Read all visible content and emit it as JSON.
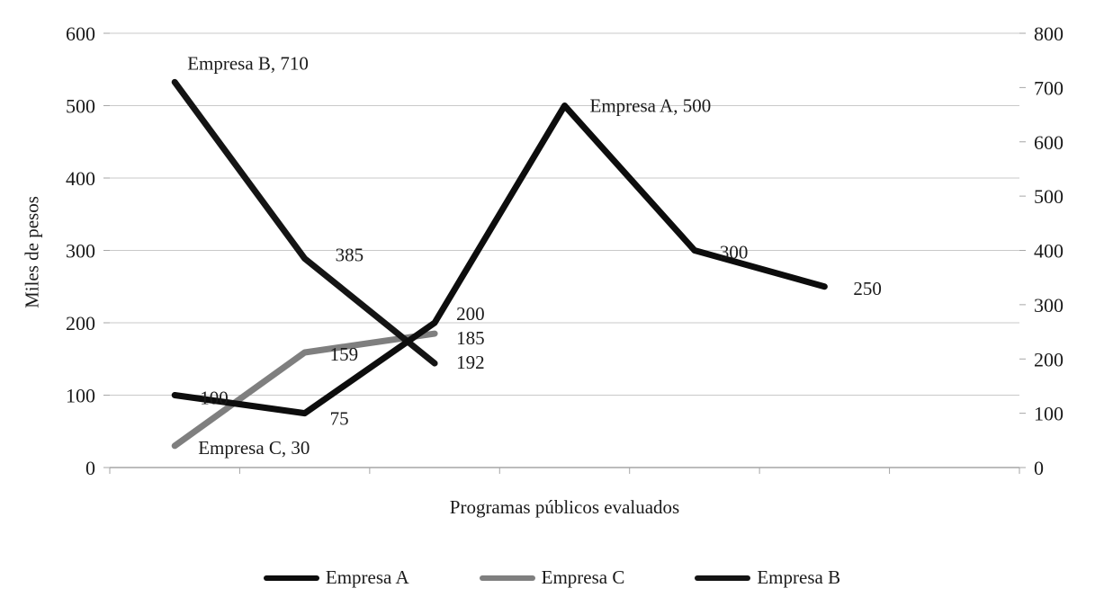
{
  "chart_data": {
    "type": "line",
    "title": "",
    "xlabel": "Programas públicos evaluados",
    "ylabel": "Miles de pesos",
    "grid": true,
    "legend_position": "bottom",
    "left_axis": {
      "min": 0,
      "max": 600,
      "step": 100,
      "tick_labels": [
        "0",
        "100",
        "200",
        "300",
        "400",
        "500",
        "600"
      ]
    },
    "right_axis": {
      "min": 0,
      "max": 800,
      "step": 100,
      "tick_labels": [
        "0",
        "100",
        "200",
        "300",
        "400",
        "500",
        "600",
        "700",
        "800"
      ]
    },
    "categories_count": 7,
    "series": [
      {
        "name": "Empresa C",
        "axis": "left",
        "color": "#7f7f7f",
        "values": [
          30,
          159,
          185
        ],
        "labels": [
          {
            "i": 0,
            "text": "Empresa C, 30",
            "dx": 26,
            "dy": 9
          },
          {
            "i": 1,
            "text": "159",
            "dx": 28,
            "dy": 9
          },
          {
            "i": 2,
            "text": "185",
            "dx": 24,
            "dy": 12
          }
        ]
      },
      {
        "name": "Empresa B",
        "axis": "right",
        "color": "#141414",
        "values": [
          710,
          385,
          192
        ],
        "labels": [
          {
            "i": 0,
            "text": "Empresa B, 710",
            "dx": 14,
            "dy": -14
          },
          {
            "i": 1,
            "text": "385",
            "dx": 34,
            "dy": 3
          },
          {
            "i": 2,
            "text": "192",
            "dx": 24,
            "dy": 6
          }
        ]
      },
      {
        "name": "Empresa A",
        "axis": "left",
        "color": "#0d0d0d",
        "values": [
          100,
          75,
          200,
          500,
          300,
          250
        ],
        "labels": [
          {
            "i": 0,
            "text": "100",
            "dx": 28,
            "dy": 10
          },
          {
            "i": 1,
            "text": "75",
            "dx": 28,
            "dy": 13
          },
          {
            "i": 2,
            "text": "200",
            "dx": 24,
            "dy": -3
          },
          {
            "i": 3,
            "text": "Empresa A, 500",
            "dx": 28,
            "dy": 7
          },
          {
            "i": 4,
            "text": "300",
            "dx": 28,
            "dy": 9
          },
          {
            "i": 5,
            "text": "250",
            "dx": 32,
            "dy": 9
          }
        ]
      }
    ],
    "legend": [
      {
        "label": "Empresa A",
        "color": "#0d0d0d"
      },
      {
        "label": "Empresa C",
        "color": "#7f7f7f"
      },
      {
        "label": "Empresa B",
        "color": "#141414"
      }
    ]
  }
}
